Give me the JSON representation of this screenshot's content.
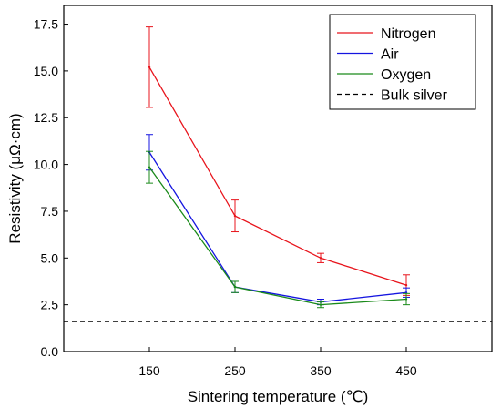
{
  "chart_data": {
    "type": "line",
    "xlabel": "Sintering temperature (℃)",
    "ylabel": "Resistivity (μΩ·cm)",
    "x": [
      150,
      250,
      350,
      450
    ],
    "x_tick_labels": [
      "150",
      "250",
      "350",
      "450"
    ],
    "xlim": [
      50,
      550
    ],
    "ylim": [
      0,
      18.5
    ],
    "y_ticks": [
      0.0,
      2.5,
      5.0,
      7.5,
      10.0,
      12.5,
      15.0,
      17.5
    ],
    "y_tick_labels": [
      "0.0",
      "2.5",
      "5.0",
      "7.5",
      "10.0",
      "12.5",
      "15.0",
      "17.5"
    ],
    "grid": false,
    "legend_position": "top-right",
    "series": [
      {
        "name": "Nitrogen",
        "color": "#e8141c",
        "values": [
          15.2,
          7.25,
          5.0,
          3.55
        ],
        "error": [
          2.15,
          0.85,
          0.25,
          0.55
        ]
      },
      {
        "name": "Air",
        "color": "#1515e0",
        "values": [
          10.65,
          3.45,
          2.65,
          3.15
        ],
        "error": [
          0.95,
          0.3,
          0.15,
          0.25
        ]
      },
      {
        "name": "Oxygen",
        "color": "#1a8a1a",
        "values": [
          9.85,
          3.45,
          2.5,
          2.8
        ],
        "error": [
          0.85,
          0.3,
          0.15,
          0.3
        ]
      }
    ],
    "reference_lines": [
      {
        "name": "Bulk silver",
        "value": 1.6,
        "style": "dashed",
        "color": "#000000"
      }
    ]
  }
}
